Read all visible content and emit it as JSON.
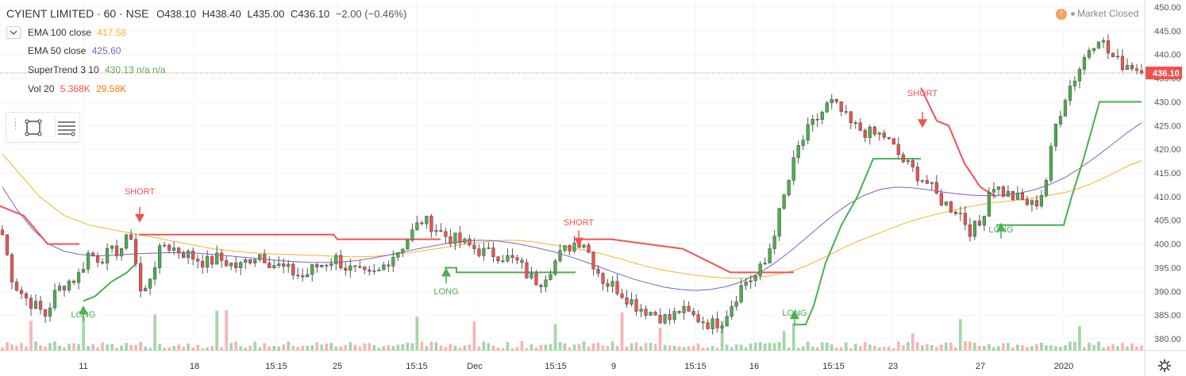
{
  "header": {
    "symbol": "CYIENT LIMITED · 60 · NSE",
    "open": "O438.10",
    "high": "H438.40",
    "low": "L435.00",
    "close": "C436.10",
    "change": "−2.00 (−0.46%)"
  },
  "indicators": [
    {
      "label": "EMA 100 close",
      "value": "417.58",
      "color": "#f0b429"
    },
    {
      "label": "EMA 50 close",
      "value": "425.60",
      "color": "#7b61c9"
    },
    {
      "label": "SuperTrend 3 10",
      "value": "430.13  n/a  n/a",
      "color": "#4caf50"
    },
    {
      "label": "Vol 20",
      "value": "5.368K",
      "value2": "29.58K",
      "color": "#ef5350",
      "color2": "#f57c00"
    }
  ],
  "status": {
    "text": "Market Closed"
  },
  "toolbox": {
    "icons": [
      "grip-icon",
      "square-select-icon",
      "list-lines-icon"
    ]
  },
  "colors": {
    "up": "#4caf50",
    "down": "#ef5350",
    "ema100": "#f0b429",
    "ema50": "#7b61c9",
    "st_up": "#4caf50",
    "st_down": "#ef5350",
    "last_price": "#ef5350"
  },
  "chart_data": {
    "type": "candlestick",
    "title": "CYIENT LIMITED · 60 · NSE",
    "y_axis": {
      "ticks": [
        380.0,
        385.0,
        390.0,
        395.0,
        400.0,
        405.0,
        410.0,
        415.0,
        420.0,
        425.0,
        430.0,
        435.0,
        440.0,
        445.0,
        450.0
      ],
      "last_price": "436.10"
    },
    "x_axis": {
      "ticks": [
        "11",
        "18",
        "15:15",
        "25",
        "15:15",
        "Dec",
        "15:15",
        "9",
        "15:15",
        "16",
        "15:15",
        "23",
        "27",
        "2020"
      ]
    },
    "grid": true,
    "close_path": [
      402,
      392,
      389,
      387,
      385,
      390,
      392,
      393,
      398,
      397,
      398,
      399,
      402,
      388,
      395,
      400,
      399,
      398,
      397,
      396,
      397,
      396,
      395,
      397,
      398,
      396,
      395,
      394,
      393,
      395,
      396,
      397,
      395,
      394,
      393,
      394,
      397,
      399,
      402,
      405,
      404,
      402,
      401,
      400,
      399,
      398,
      398,
      397,
      396,
      393,
      392,
      395,
      398,
      400,
      401,
      396,
      392,
      391,
      389,
      387,
      386,
      385,
      384,
      386,
      385,
      384,
      383,
      384,
      388,
      392,
      393,
      396,
      404,
      412,
      420,
      424,
      427,
      430,
      428,
      425,
      424,
      423,
      423,
      420,
      417,
      415,
      413,
      410,
      408,
      407,
      403,
      404,
      413,
      411,
      410,
      409,
      408,
      412,
      425,
      432,
      436,
      441,
      444,
      440,
      438,
      438,
      436.1
    ],
    "ema100": [
      419,
      416,
      413,
      410,
      408,
      406,
      405,
      404,
      403.5,
      403,
      402.5,
      402,
      401.5,
      401,
      400.5,
      400,
      399.5,
      399,
      398.7,
      398.4,
      398.2,
      398,
      397.9,
      397.8,
      397.7,
      397.6,
      397.5,
      397.4,
      397.3,
      397.3,
      397.4,
      397.6,
      397.9,
      398.2,
      398.6,
      399,
      399.4,
      399.8,
      400.2,
      400.5,
      400.7,
      400.8,
      400.7,
      400.4,
      400,
      399.6,
      399.2,
      398.7,
      398.2,
      397.5,
      396.8,
      396,
      395.3,
      394.7,
      394.2,
      393.8,
      393.4,
      393.1,
      392.9,
      392.8,
      392.8,
      393,
      393.3,
      393.8,
      394.5,
      395.5,
      396.7,
      398,
      399.3,
      400.5,
      401.5,
      402.5,
      403.5,
      404.5,
      405.3,
      406,
      406.6,
      407.2,
      407.8,
      408.3,
      408.7,
      409,
      409.3,
      409.6,
      410,
      410.5,
      411,
      411.8,
      412.8,
      414,
      415.3,
      416.6,
      417.6
    ],
    "ema50": [
      412,
      407,
      403,
      400,
      398.5,
      397.8,
      397.5,
      397.6,
      397.8,
      398,
      398.1,
      398.2,
      398.2,
      398,
      397.7,
      397.4,
      397.1,
      396.8,
      396.5,
      396.3,
      396.1,
      396.1,
      396.2,
      396.5,
      397,
      397.6,
      398.3,
      399,
      399.6,
      400.2,
      400.6,
      400.8,
      400.7,
      400.3,
      399.7,
      399,
      398.2,
      397.2,
      396.1,
      394.9,
      393.7,
      392.6,
      391.7,
      390.9,
      390.4,
      390.2,
      390.4,
      391,
      392,
      393.6,
      395.6,
      398,
      400.7,
      403.5,
      406.2,
      408.5,
      410.3,
      411.5,
      412,
      411.9,
      411.5,
      411,
      410.6,
      410.3,
      410.2,
      410.3,
      410.7,
      411.4,
      412.5,
      414,
      416,
      418.3,
      420.8,
      423.3,
      425.6
    ],
    "supertrend": {
      "signals": [
        {
          "type": "SHORT",
          "label": "SHORT"
        },
        {
          "type": "LONG",
          "label": "LONG"
        },
        {
          "type": "LONG",
          "label": "LONG"
        },
        {
          "type": "SHORT",
          "label": "SHORT"
        },
        {
          "type": "LONG",
          "label": "LONG"
        },
        {
          "type": "SHORT",
          "label": "SHORT"
        },
        {
          "type": "LONG",
          "label": "LONG"
        }
      ]
    },
    "volume": {
      "last": "5.368K",
      "ma20": "29.58K"
    }
  }
}
